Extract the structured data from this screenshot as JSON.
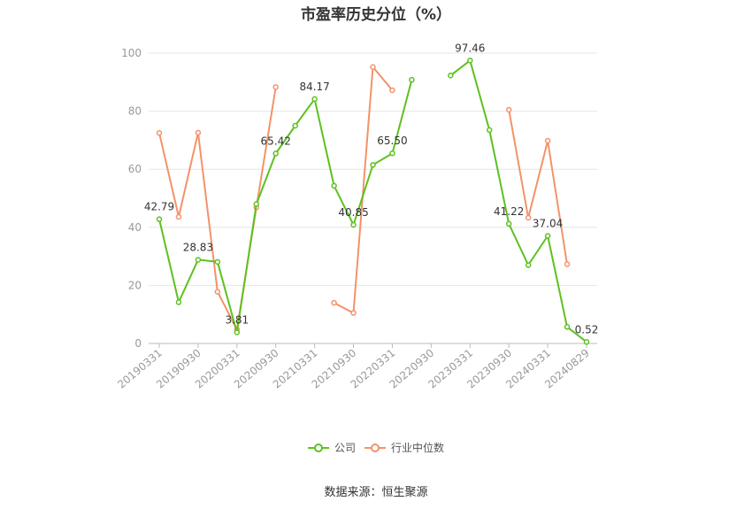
{
  "colors": {
    "company": "#5ec11f",
    "industry": "#f4926a",
    "grid": "#e6e6e6",
    "axis": "#999999",
    "label": "#333333"
  },
  "footer": {
    "source": "数据来源：恒生聚源"
  },
  "chart_data": {
    "type": "line",
    "title": "市盈率历史分位（%）",
    "xlabel": "",
    "ylabel": "",
    "ylim": [
      0,
      100
    ],
    "yticks": [
      0,
      20,
      40,
      60,
      80,
      100
    ],
    "grid": true,
    "legend_position": "bottom",
    "categories": [
      "20190331",
      "20190630",
      "20190930",
      "20191231",
      "20200331",
      "20200630",
      "20200930",
      "20201231",
      "20210331",
      "20210630",
      "20210930",
      "20211231",
      "20220331",
      "20220630",
      "20220930",
      "20221231",
      "20230331",
      "20230630",
      "20230930",
      "20231231",
      "20240331",
      "20240630",
      "20240829"
    ],
    "tick_labels": [
      "20190331",
      "20190930",
      "20200331",
      "20200930",
      "20210331",
      "20210930",
      "20220331",
      "20220930",
      "20230331",
      "20230930",
      "20240331",
      "20240829"
    ],
    "series": [
      {
        "name": "公司",
        "color": "#5ec11f",
        "values": [
          42.79,
          14.2,
          28.83,
          28.1,
          3.81,
          48.0,
          65.42,
          75.0,
          84.17,
          54.3,
          40.85,
          61.5,
          65.5,
          90.8,
          null,
          92.3,
          97.46,
          73.5,
          41.22,
          27.0,
          37.04,
          5.7,
          0.52
        ],
        "labels": {
          "0": "42.79",
          "2": "28.83",
          "4": "3.81",
          "6": "65.42",
          "8": "84.17",
          "10": "40.85",
          "12": "65.50",
          "16": "97.46",
          "18": "41.22",
          "20": "37.04",
          "22": "0.52"
        }
      },
      {
        "name": "行业中位数",
        "color": "#f4926a",
        "values": [
          72.5,
          43.6,
          72.6,
          17.8,
          4.8,
          46.9,
          88.3,
          null,
          null,
          14.0,
          10.5,
          95.2,
          87.2,
          null,
          null,
          null,
          null,
          null,
          80.5,
          43.3,
          69.8,
          27.3,
          null
        ]
      }
    ]
  }
}
